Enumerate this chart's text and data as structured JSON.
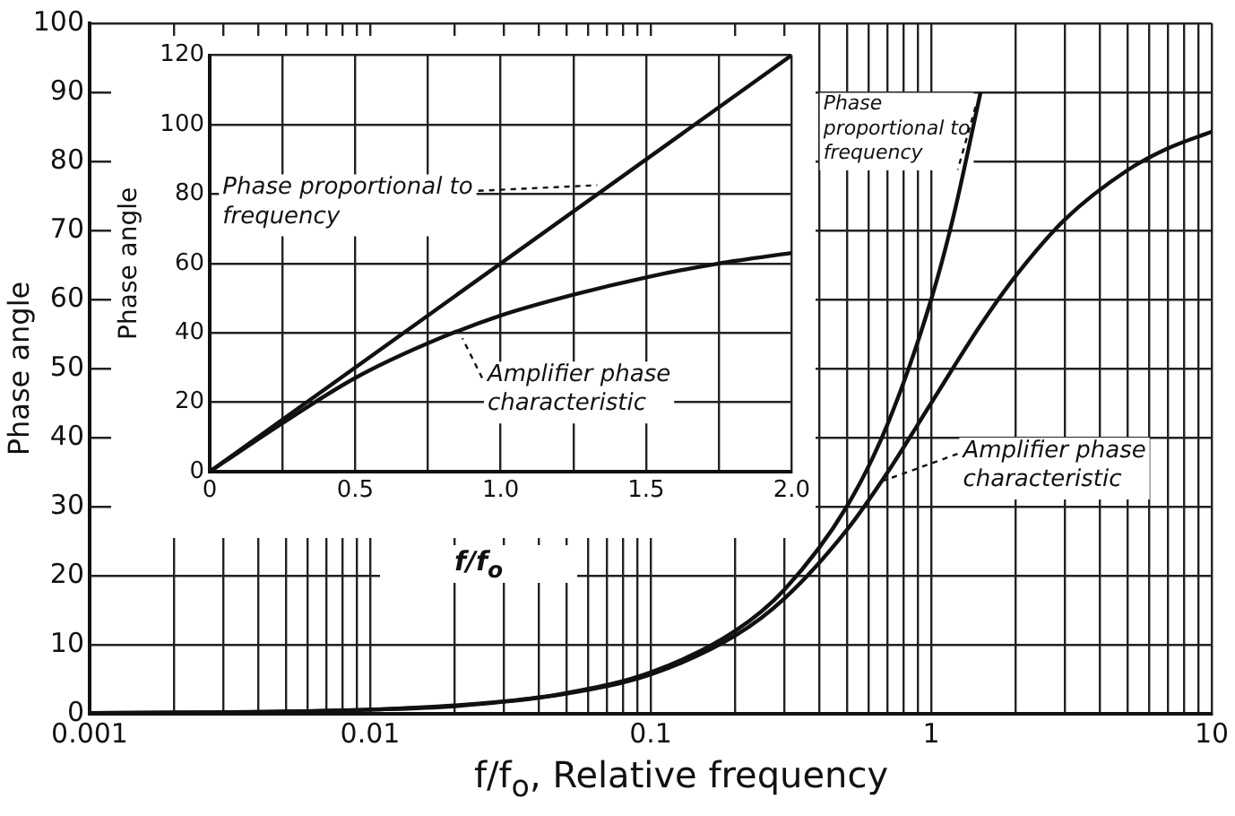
{
  "chart_data": [
    {
      "type": "line",
      "xlabel": "f/f$_{o}$, Relative frequency",
      "ylabel": "Phase angle",
      "log": "x",
      "grid": true,
      "xlim": [
        0.001,
        10
      ],
      "xticks": [
        {
          "value": 0.001,
          "label": "0.001"
        },
        {
          "value": 0.002,
          "label": null
        },
        {
          "value": 0.003,
          "label": null
        },
        {
          "value": 0.004,
          "label": null
        },
        {
          "value": 0.005,
          "label": null
        },
        {
          "value": 0.006,
          "label": null
        },
        {
          "value": 0.007,
          "label": null
        },
        {
          "value": 0.008,
          "label": null
        },
        {
          "value": 0.009,
          "label": null
        },
        {
          "value": 0.01,
          "label": "0.01"
        },
        {
          "value": 0.02,
          "label": null
        },
        {
          "value": 0.03,
          "label": null
        },
        {
          "value": 0.04,
          "label": null
        },
        {
          "value": 0.05,
          "label": null
        },
        {
          "value": 0.06,
          "label": null
        },
        {
          "value": 0.07,
          "label": null
        },
        {
          "value": 0.08,
          "label": null
        },
        {
          "value": 0.09,
          "label": null
        },
        {
          "value": 0.1,
          "label": "0.1"
        },
        {
          "value": 0.2,
          "label": null
        },
        {
          "value": 0.3,
          "label": null
        },
        {
          "value": 0.4,
          "label": null
        },
        {
          "value": 0.5,
          "label": null
        },
        {
          "value": 0.6,
          "label": null
        },
        {
          "value": 0.7,
          "label": null
        },
        {
          "value": 0.8,
          "label": null
        },
        {
          "value": 0.9,
          "label": null
        },
        1,
        {
          "value": 2,
          "label": null
        },
        {
          "value": 3,
          "label": null
        },
        {
          "value": 4,
          "label": null
        },
        {
          "value": 5,
          "label": null
        },
        {
          "value": 6,
          "label": null
        },
        {
          "value": 7,
          "label": null
        },
        {
          "value": 8,
          "label": null
        },
        {
          "value": 9,
          "label": null
        },
        10
      ],
      "ylim": [
        0,
        100
      ],
      "yticks": [
        0,
        10,
        20,
        30,
        40,
        50,
        60,
        70,
        80,
        90,
        100
      ],
      "series": [
        {
          "color": "#111111",
          "x": [
            0.001,
            0.01,
            0.03,
            0.05,
            0.1,
            0.2,
            0.3,
            0.5,
            0.7,
            1,
            1.2,
            1.5
          ],
          "values": [
            0.1,
            0.6,
            1.8,
            3,
            6,
            12,
            18,
            30,
            42,
            60,
            72,
            90
          ]
        },
        {
          "color": "#111111",
          "x": [
            0.001,
            0.003,
            0.01,
            0.02,
            0.05,
            0.1,
            0.2,
            0.3,
            0.5,
            0.7,
            1,
            1.5,
            2,
            3,
            5,
            7,
            10
          ],
          "values": [
            0.1,
            0.2,
            0.6,
            1.1,
            2.9,
            5.7,
            11.3,
            16.7,
            26.6,
            35,
            45,
            56.3,
            63.4,
            71.6,
            78.7,
            81.9,
            84.3
          ]
        }
      ],
      "annotations": [
        {
          "text": "Phase proportional to frequency",
          "x": 1.3,
          "y": 78
        },
        {
          "text": "Amplifier phase characteristic",
          "x": 0.65,
          "y": 33
        }
      ]
    },
    {
      "type": "line",
      "xlabel": "f/f$_{o}$",
      "ylabel": "Phase angle",
      "grid": true,
      "xlim": [
        0,
        2
      ],
      "xticks": [
        0,
        {
          "value": 0.25,
          "label": null
        },
        0.5,
        {
          "value": 0.75,
          "label": null
        },
        {
          "value": 1,
          "label": "1.0"
        },
        {
          "value": 1.25,
          "label": null
        },
        1.5,
        {
          "value": 1.75,
          "label": null
        },
        {
          "value": 2,
          "label": "2.0"
        }
      ],
      "ylim": [
        0,
        120
      ],
      "yticks": [
        0,
        20,
        40,
        60,
        80,
        100,
        120
      ],
      "series": [
        {
          "color": "#111111",
          "x": [
            0,
            2
          ],
          "values": [
            0,
            120
          ]
        },
        {
          "color": "#111111",
          "x": [
            0,
            0.25,
            0.5,
            0.75,
            1,
            1.25,
            1.5,
            1.75,
            2
          ],
          "values": [
            0,
            14,
            27,
            37,
            45,
            51,
            56,
            60,
            63
          ]
        }
      ],
      "annotations": [
        {
          "text": "Phase proportional to frequency",
          "x": 1.35,
          "y": 81
        },
        {
          "text": "Amplifier phase characteristic",
          "x": 0.85,
          "y": 40
        }
      ]
    }
  ]
}
